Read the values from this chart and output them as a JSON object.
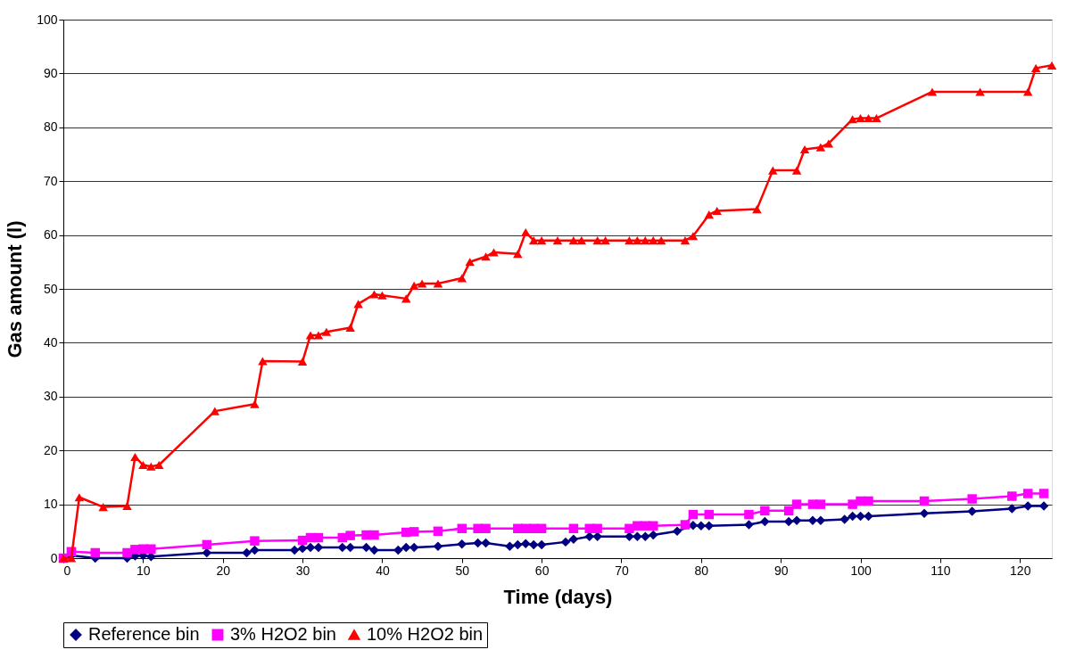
{
  "chart_data": {
    "type": "line",
    "xlabel": "Time (days)",
    "ylabel": "Gas amount (l)",
    "xlim": [
      0,
      124
    ],
    "xticks": [
      0,
      10,
      20,
      30,
      40,
      50,
      60,
      70,
      80,
      90,
      100,
      110,
      120
    ],
    "ylim": [
      0,
      100
    ],
    "yticks": [
      0,
      10,
      20,
      30,
      40,
      50,
      60,
      70,
      80,
      90,
      100
    ],
    "grid": "y",
    "legend": "bottom",
    "line_style": "solid",
    "series": [
      {
        "name": "Reference bin",
        "color": "#000080",
        "marker": "diamond",
        "x": [
          0,
          1,
          4,
          8,
          9,
          10,
          11,
          18,
          23,
          24,
          29,
          30,
          31,
          32,
          35,
          36,
          38,
          39,
          42,
          43,
          44,
          47,
          50,
          52,
          53,
          56,
          57,
          58,
          59,
          60,
          63,
          64,
          66,
          67,
          71,
          72,
          73,
          74,
          77,
          79,
          80,
          81,
          86,
          88,
          91,
          92,
          94,
          95,
          98,
          99,
          100,
          101,
          108,
          114,
          119,
          121,
          123
        ],
        "values": [
          0,
          0.5,
          0,
          0,
          0.4,
          0.5,
          0.3,
          1,
          1,
          1.5,
          1.5,
          1.8,
          2,
          2,
          2,
          2,
          2,
          1.5,
          1.5,
          2,
          2,
          2.2,
          2.6,
          2.8,
          2.8,
          2.2,
          2.5,
          2.7,
          2.5,
          2.5,
          3,
          3.5,
          4,
          4,
          4,
          4,
          4,
          4.3,
          5,
          6.1,
          6,
          6,
          6.2,
          6.8,
          6.8,
          7,
          7,
          7,
          7.2,
          7.8,
          7.8,
          7.8,
          8.3,
          8.7,
          9.2,
          9.7,
          9.7
        ]
      },
      {
        "name": "3% H2O2 bin",
        "color": "#ff00ff",
        "marker": "square",
        "x": [
          0,
          1,
          4,
          8,
          9,
          10,
          11,
          18,
          24,
          30,
          31,
          32,
          35,
          36,
          38,
          39,
          43,
          44,
          47,
          50,
          52,
          53,
          57,
          58,
          59,
          60,
          64,
          66,
          67,
          71,
          72,
          73,
          74,
          78,
          79,
          81,
          86,
          88,
          91,
          92,
          94,
          95,
          99,
          100,
          101,
          108,
          114,
          119,
          121,
          123
        ],
        "values": [
          0,
          1.2,
          1,
          1,
          1.6,
          1.7,
          1.7,
          2.5,
          3.2,
          3.3,
          3.8,
          3.8,
          3.8,
          4.2,
          4.3,
          4.3,
          4.8,
          4.9,
          5,
          5.5,
          5.5,
          5.5,
          5.5,
          5.5,
          5.5,
          5.5,
          5.5,
          5.5,
          5.5,
          5.5,
          6,
          6,
          6,
          6.2,
          8.1,
          8.1,
          8.1,
          8.8,
          8.8,
          10,
          10,
          10,
          10,
          10.6,
          10.6,
          10.6,
          11,
          11.5,
          12,
          12
        ]
      },
      {
        "name": "10% H2O2 bin",
        "color": "#ff0000",
        "marker": "triangle",
        "x": [
          0,
          1,
          2,
          5,
          8,
          9,
          10,
          11,
          12,
          19,
          24,
          25,
          30,
          31,
          32,
          33,
          36,
          37,
          39,
          40,
          43,
          44,
          45,
          47,
          50,
          51,
          53,
          54,
          57,
          58,
          59,
          60,
          62,
          64,
          65,
          67,
          68,
          71,
          72,
          73,
          74,
          75,
          78,
          79,
          81,
          82,
          87,
          89,
          92,
          93,
          95,
          96,
          99,
          100,
          101,
          102,
          109,
          115,
          121,
          122,
          124
        ],
        "values": [
          0,
          0,
          11.3,
          9.5,
          9.7,
          18.8,
          17.3,
          17,
          17.3,
          27.3,
          28.6,
          36.6,
          36.5,
          41.4,
          41.4,
          42,
          42.8,
          47.2,
          49,
          48.8,
          48.2,
          50.6,
          51,
          51,
          52,
          55,
          56,
          56.8,
          56.5,
          60.5,
          59,
          59,
          59,
          59,
          59,
          59,
          59,
          59,
          59,
          59,
          59,
          59,
          59,
          59.8,
          63.8,
          64.5,
          64.8,
          72,
          72,
          75.9,
          76.3,
          77,
          81.5,
          81.7,
          81.7,
          81.7,
          86.6,
          86.6,
          86.6,
          91,
          91.5
        ]
      }
    ]
  }
}
